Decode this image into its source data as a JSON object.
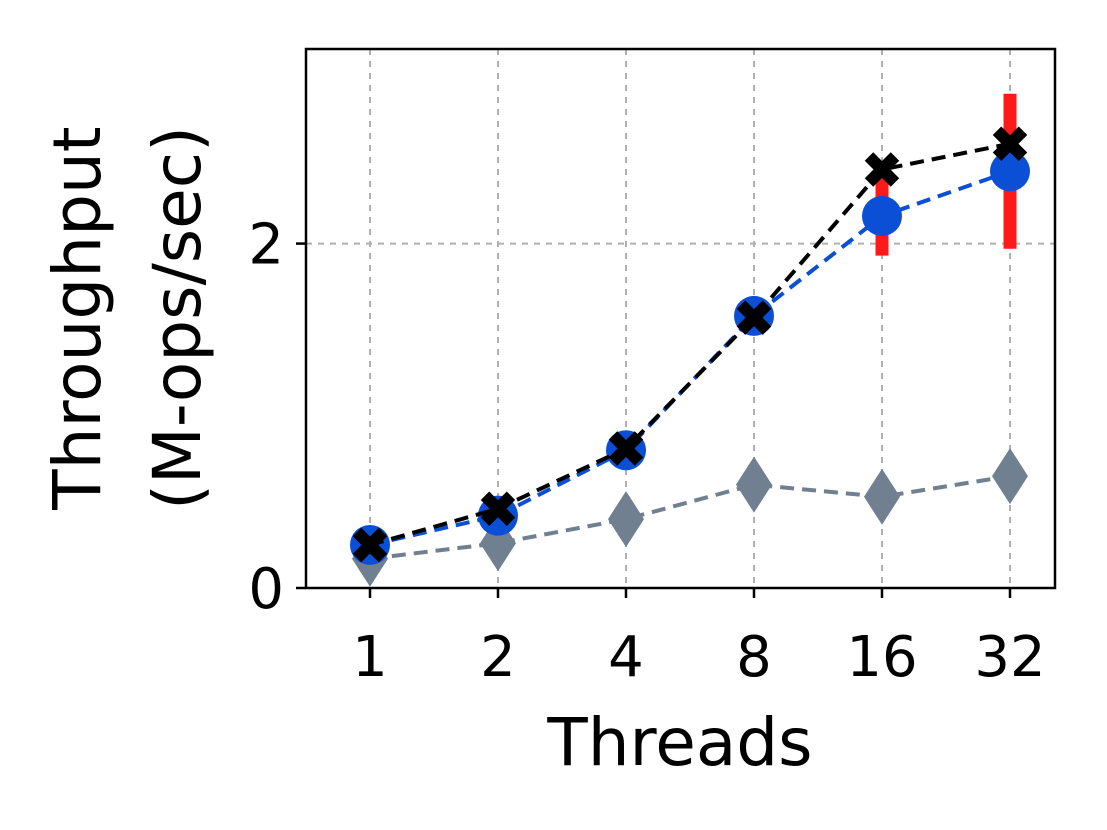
{
  "chart_data": {
    "type": "line",
    "x_categories": [
      "1",
      "2",
      "4",
      "8",
      "16",
      "32"
    ],
    "xlabel": "Threads",
    "ylabel_lines": [
      "Throughput",
      "(M-ops/sec)"
    ],
    "ylim": [
      0,
      3.13
    ],
    "yticks": [
      0,
      2
    ],
    "grid": true,
    "error_bar_color": "#ff1a1a",
    "series": [
      {
        "marker": "diamond",
        "color": "#708090",
        "line_style": "dashed",
        "values": [
          0.17,
          0.26,
          0.4,
          0.6,
          0.53,
          0.65
        ]
      },
      {
        "marker": "circle",
        "color": "#0a4fd6",
        "line_style": "dashed",
        "values": [
          0.25,
          0.42,
          0.8,
          1.58,
          2.16,
          2.42
        ],
        "error": [
          0,
          0,
          0,
          0,
          0.23,
          0.45
        ]
      },
      {
        "marker": "x",
        "color": "#000000",
        "line_style": "dashed",
        "values": [
          0.25,
          0.46,
          0.81,
          1.57,
          2.43,
          2.58
        ]
      }
    ]
  }
}
